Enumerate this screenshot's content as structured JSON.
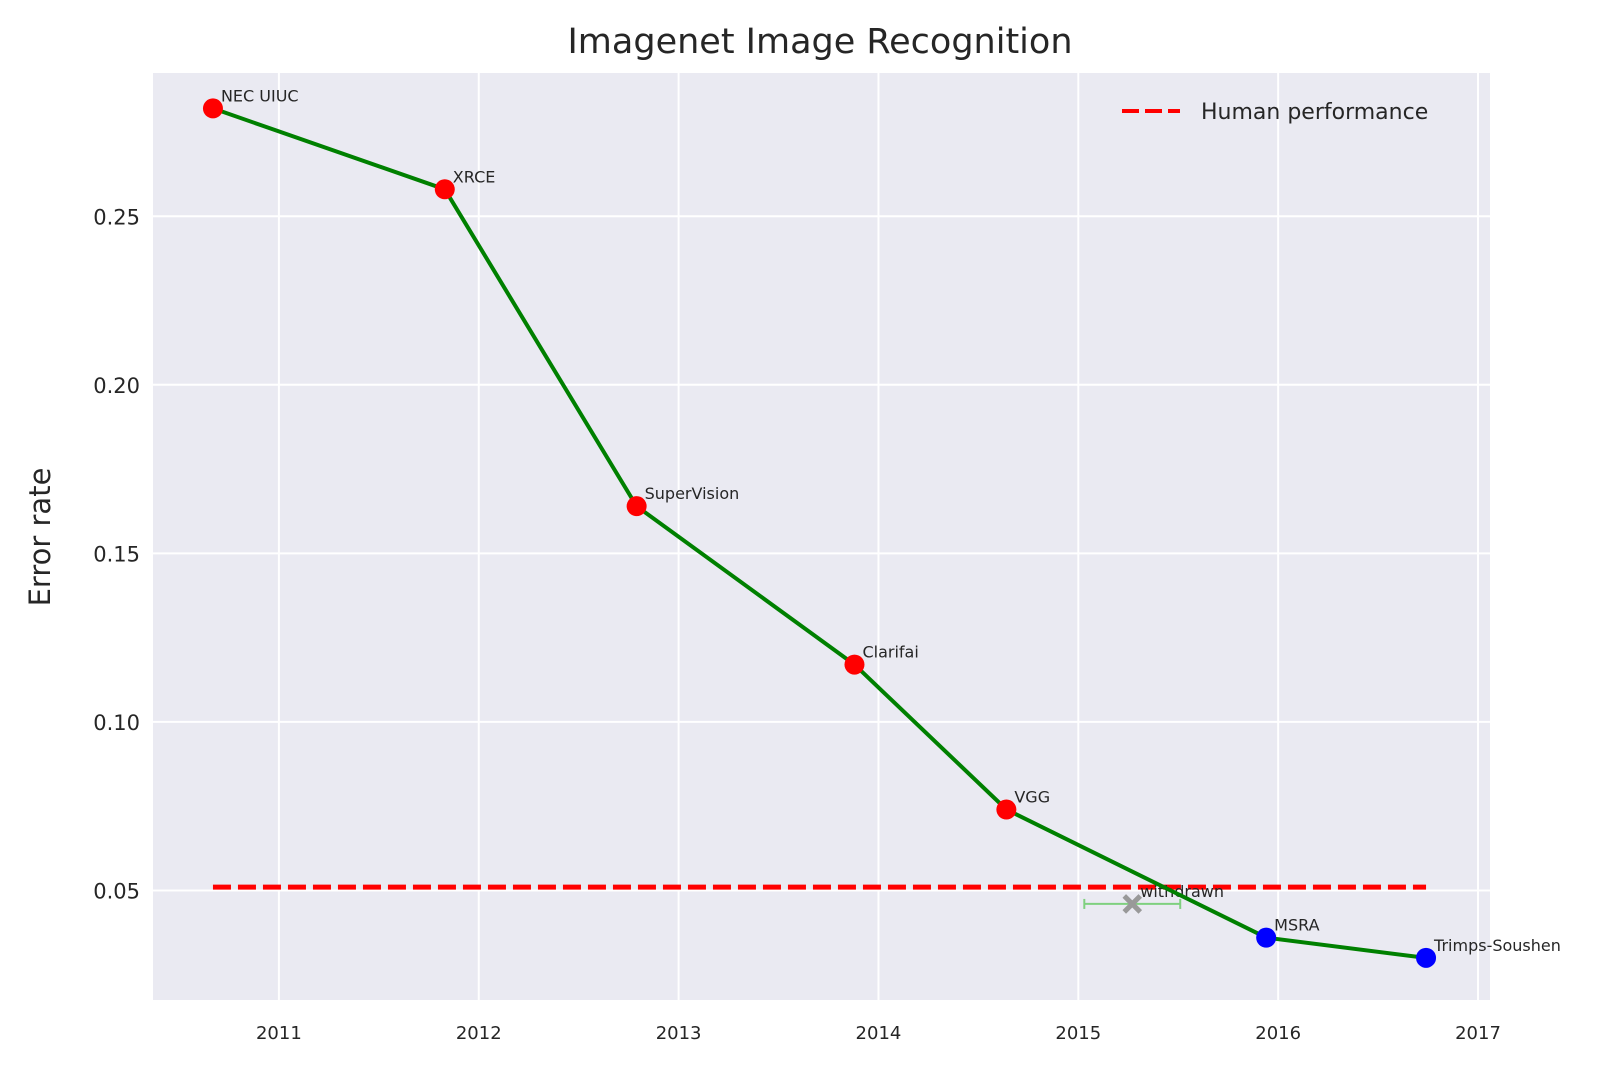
{
  "chart_data": {
    "type": "line",
    "title": "Imagenet Image Recognition",
    "xlabel": "",
    "ylabel": "Error rate",
    "xlim": [
      2010.37,
      2017.06
    ],
    "ylim": [
      0.0175,
      0.2925
    ],
    "x_ticks": [
      2011,
      2012,
      2013,
      2014,
      2015,
      2016,
      2017
    ],
    "y_ticks": [
      0.05,
      0.1,
      0.15,
      0.2,
      0.25
    ],
    "y_tick_labels": [
      "0.05",
      "0.10",
      "0.15",
      "0.20",
      "0.25"
    ],
    "grid": true,
    "legend_position": "top-right",
    "colors": {
      "background": "#eaeaf2",
      "grid": "#ffffff",
      "line": "#008000",
      "marker_before_human": "#ff0000",
      "marker_after_human": "#0000ff",
      "human_line": "#ff0000",
      "withdrawn_marker": "#999999",
      "withdrawn_errorbar": "#7fd07f"
    },
    "series": [
      {
        "points": [
          {
            "x": 2010.67,
            "y": 0.282,
            "label": "NEC UIUC",
            "marker_color": "#ff0000"
          },
          {
            "x": 2011.83,
            "y": 0.258,
            "label": "XRCE",
            "marker_color": "#ff0000"
          },
          {
            "x": 2012.79,
            "y": 0.164,
            "label": "SuperVision",
            "marker_color": "#ff0000"
          },
          {
            "x": 2013.88,
            "y": 0.117,
            "label": "Clarifai",
            "marker_color": "#ff0000"
          },
          {
            "x": 2014.64,
            "y": 0.074,
            "label": "VGG",
            "marker_color": "#ff0000"
          },
          {
            "x": 2015.94,
            "y": 0.036,
            "label": "MSRA",
            "marker_color": "#0000ff"
          },
          {
            "x": 2016.74,
            "y": 0.03,
            "label": "Trimps-Soushen",
            "marker_color": "#0000ff"
          }
        ]
      }
    ],
    "reference_line": {
      "name": "Human performance",
      "y": 0.051,
      "x_start": 2010.67,
      "x_end": 2016.74,
      "style": "dashed"
    },
    "withdrawn": {
      "x": 2015.27,
      "y": 0.046,
      "x_err_low": 2015.03,
      "x_err_high": 2015.51,
      "label": "withdrawn"
    }
  }
}
